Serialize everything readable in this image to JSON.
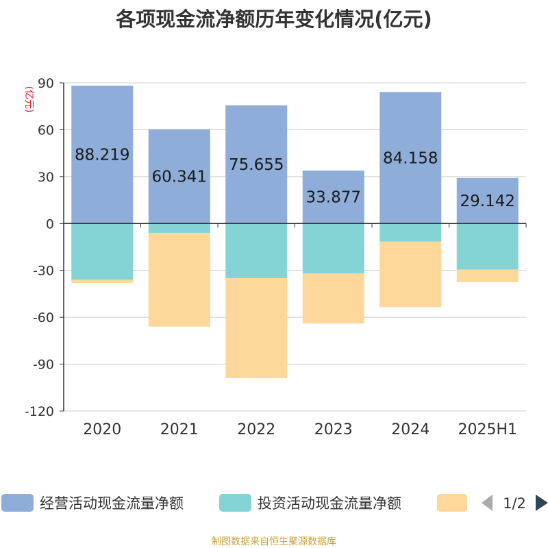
{
  "title": "各项现金流净额历年变化情况(亿元)",
  "source": "制图数据来自恒生聚源数据库",
  "legend_page": "1/2",
  "chart_data": {
    "type": "bar",
    "stacked": true,
    "categories": [
      "2020",
      "2021",
      "2022",
      "2023",
      "2024",
      "2025H1"
    ],
    "ylabel": "(亿元)",
    "ylim": [
      -120,
      90
    ],
    "yticks": [
      90,
      60,
      30,
      0,
      -30,
      -60,
      -90,
      -120
    ],
    "grid": true,
    "legend_position": "bottom",
    "series": [
      {
        "name": "经营活动现金流量净额",
        "color": "#8eadd9",
        "values": [
          88.219,
          60.341,
          75.655,
          33.877,
          84.158,
          29.142
        ],
        "labels": [
          "88.219",
          "60.341",
          "75.655",
          "33.877",
          "84.158",
          "29.142"
        ]
      },
      {
        "name": "投资活动现金流量净额",
        "color": "#84d4d6",
        "values": [
          -36,
          -6,
          -35,
          -32,
          -11.5,
          -29.5
        ]
      },
      {
        "name": "",
        "color": "#fdd89a",
        "values": [
          -2,
          -60,
          -64,
          -32,
          -42,
          -8
        ]
      }
    ]
  }
}
